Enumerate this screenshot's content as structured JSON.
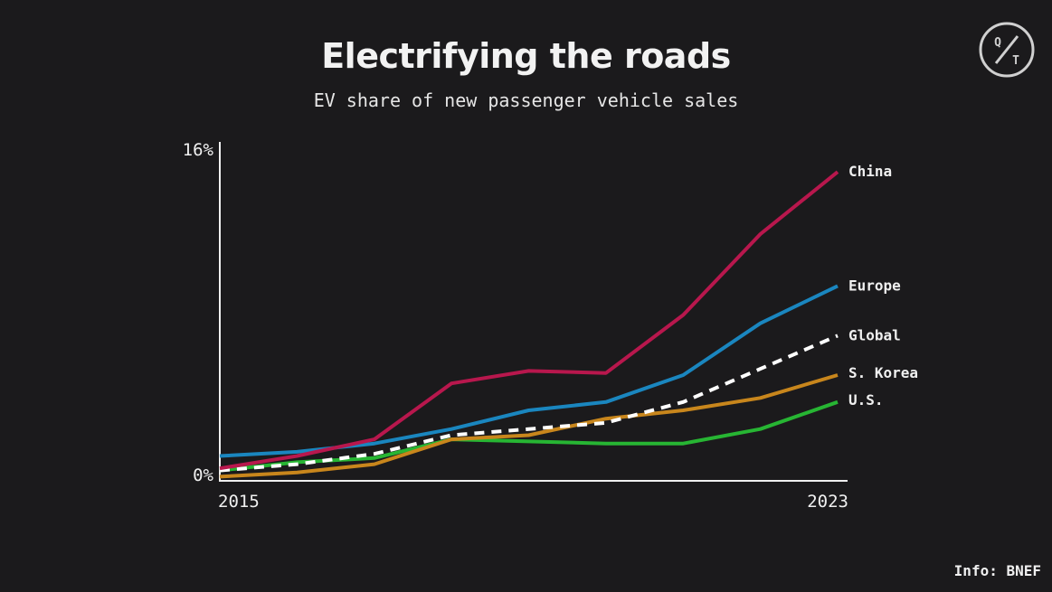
{
  "header": {
    "title": "Electrifying the roads",
    "subtitle": "EV share of new passenger vehicle sales"
  },
  "footer": {
    "source": "Info: BNEF"
  },
  "logo": {
    "icon": "qt-logo-icon",
    "letters": [
      "Q",
      "T"
    ]
  },
  "colors": {
    "background": "#1b1a1c",
    "axis": "#f0f0f0"
  },
  "chart_data": {
    "type": "line",
    "title": "Electrifying the roads",
    "subtitle": "EV share of new passenger vehicle sales",
    "x": [
      2015,
      2016,
      2017,
      2018,
      2019,
      2020,
      2021,
      2022,
      2023
    ],
    "x_tick_labels": [
      "2015",
      "2023"
    ],
    "y_tick_labels": [
      "0%",
      "16%"
    ],
    "ylim": [
      0,
      16
    ],
    "xlim": [
      2015,
      2023
    ],
    "grid": false,
    "legend": "direct labels at line ends",
    "series": [
      {
        "name": "China",
        "color": "#b8174d",
        "dash": false,
        "values": [
          0.6,
          1.2,
          2.0,
          4.7,
          5.3,
          5.2,
          8.0,
          11.9,
          14.9
        ]
      },
      {
        "name": "Europe",
        "color": "#1a86bf",
        "dash": false,
        "values": [
          1.2,
          1.4,
          1.8,
          2.5,
          3.4,
          3.8,
          5.1,
          7.6,
          9.4
        ]
      },
      {
        "name": "Global",
        "color": "#ffffff",
        "dash": true,
        "values": [
          0.5,
          0.8,
          1.3,
          2.2,
          2.5,
          2.8,
          3.8,
          5.4,
          7.0
        ]
      },
      {
        "name": "S. Korea",
        "color": "#c8861c",
        "dash": false,
        "values": [
          0.2,
          0.4,
          0.8,
          2.0,
          2.2,
          3.0,
          3.4,
          4.0,
          5.1
        ]
      },
      {
        "name": "U.S.",
        "color": "#27b533",
        "dash": false,
        "values": [
          0.5,
          0.9,
          1.1,
          2.0,
          1.9,
          1.8,
          1.8,
          2.5,
          3.8
        ]
      }
    ]
  }
}
